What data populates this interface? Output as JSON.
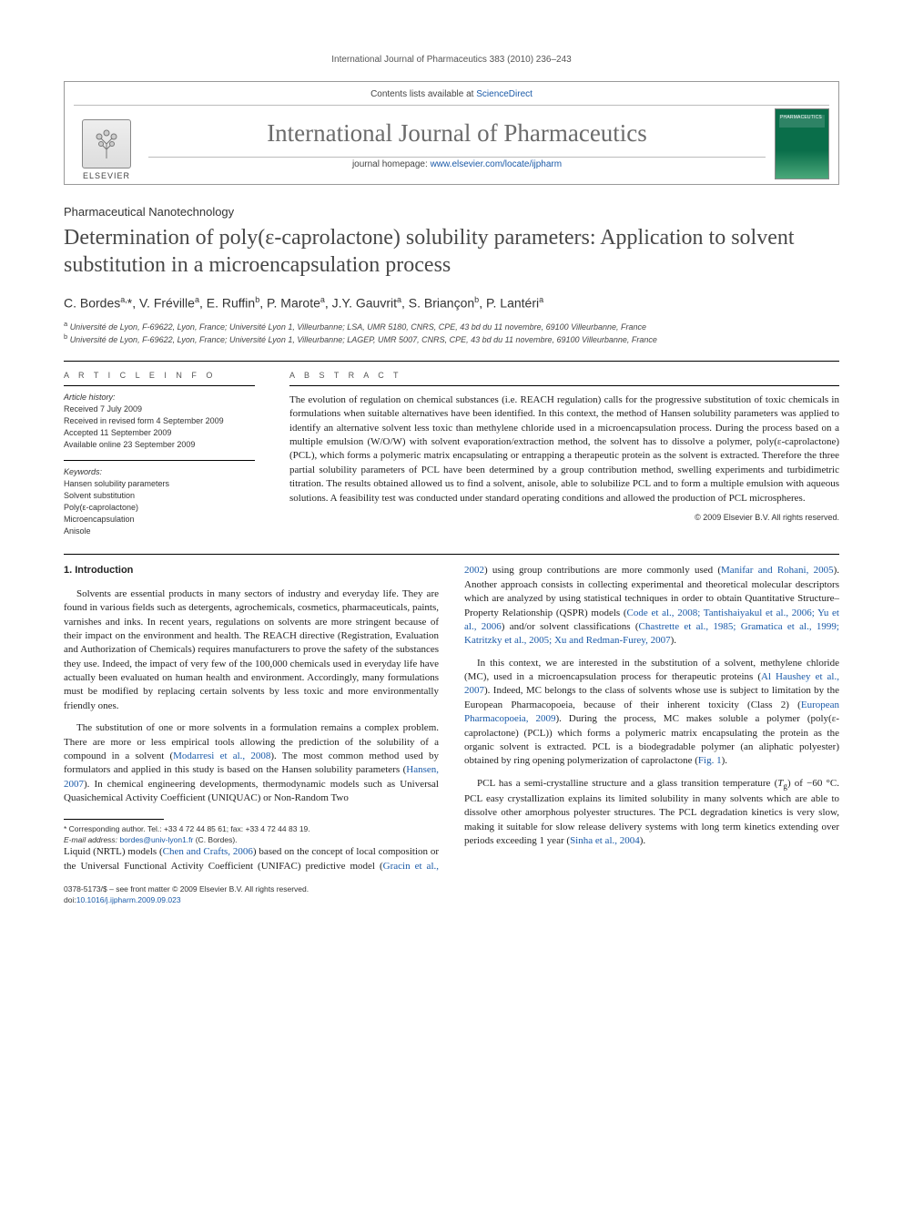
{
  "running_header": "International Journal of Pharmaceutics 383 (2010) 236–243",
  "masthead": {
    "contents_line_pre": "Contents lists available at ",
    "contents_link": "ScienceDirect",
    "journal_title": "International Journal of Pharmaceutics",
    "homepage_pre": "journal homepage: ",
    "homepage_link": "www.elsevier.com/locate/ijpharm",
    "elsevier": "ELSEVIER",
    "cover_label": "PHARMACEUTICS"
  },
  "section_tag": "Pharmaceutical Nanotechnology",
  "title": "Determination of poly(ε-caprolactone) solubility parameters: Application to solvent substitution in a microencapsulation process",
  "authors_html": "C. Bordes<sup>a,</sup>*, V. Fréville<sup>a</sup>, E. Ruffin<sup>b</sup>, P. Marote<sup>a</sup>, J.Y. Gauvrit<sup>a</sup>, S. Briançon<sup>b</sup>, P. Lantéri<sup>a</sup>",
  "affiliations": {
    "a": "Université de Lyon, F-69622, Lyon, France; Université Lyon 1, Villeurbanne; LSA, UMR 5180, CNRS, CPE, 43 bd du 11 novembre, 69100 Villeurbanne, France",
    "b": "Université de Lyon, F-69622, Lyon, France; Université Lyon 1, Villeurbanne; LAGEP, UMR 5007, CNRS, CPE, 43 bd du 11 novembre, 69100 Villeurbanne, France"
  },
  "info": {
    "heading": "A R T I C L E   I N F O",
    "history_label": "Article history:",
    "received": "Received 7 July 2009",
    "revised": "Received in revised form 4 September 2009",
    "accepted": "Accepted 11 September 2009",
    "online": "Available online 23 September 2009",
    "keywords_label": "Keywords:",
    "keywords": [
      "Hansen solubility parameters",
      "Solvent substitution",
      "Poly(ε-caprolactone)",
      "Microencapsulation",
      "Anisole"
    ]
  },
  "abstract": {
    "heading": "A B S T R A C T",
    "text": "The evolution of regulation on chemical substances (i.e. REACH regulation) calls for the progressive substitution of toxic chemicals in formulations when suitable alternatives have been identified. In this context, the method of Hansen solubility parameters was applied to identify an alternative solvent less toxic than methylene chloride used in a microencapsulation process. During the process based on a multiple emulsion (W/O/W) with solvent evaporation/extraction method, the solvent has to dissolve a polymer, poly(ε-caprolactone) (PCL), which forms a polymeric matrix encapsulating or entrapping a therapeutic protein as the solvent is extracted. Therefore the three partial solubility parameters of PCL have been determined by a group contribution method, swelling experiments and turbidimetric titration. The results obtained allowed us to find a solvent, anisole, able to solubilize PCL and to form a multiple emulsion with aqueous solutions. A feasibility test was conducted under standard operating conditions and allowed the production of PCL microspheres.",
    "copyright": "© 2009 Elsevier B.V. All rights reserved."
  },
  "intro": {
    "heading": "1.  Introduction",
    "p1": "Solvents are essential products in many sectors of industry and everyday life. They are found in various fields such as detergents, agrochemicals, cosmetics, pharmaceuticals, paints, varnishes and inks. In recent years, regulations on solvents are more stringent because of their impact on the environment and health. The REACH directive (Registration, Evaluation and Authorization of Chemicals) requires manufacturers to prove the safety of the substances they use. Indeed, the impact of very few of the 100,000 chemicals used in everyday life have actually been evaluated on human health and environment. Accordingly, many formulations must be modified by replacing certain solvents by less toxic and more environmentally friendly ones.",
    "p2_pre": "The substitution of one or more solvents in a formulation remains a complex problem. There are more or less empirical tools allowing the prediction of the solubility of a compound in a solvent (",
    "p2_ref1": "Modarresi et al., 2008",
    "p2_mid1": "). The most common method used by formulators and applied in this study is based on the Hansen solubility parameters (",
    "p2_ref2": "Hansen, 2007",
    "p2_post": "). In chemical engineering developments, thermodynamic models such as Universal Quasichemical Activity Coefficient (UNIQUAC) or Non-Random Two",
    "p3_pre": "Liquid (NRTL) models (",
    "p3_ref1": "Chen and Crafts, 2006",
    "p3_mid1": ") based on the concept of local composition or the Universal Functional Activity Coefficient (UNIFAC) predictive model (",
    "p3_ref2": "Gracin et al., 2002",
    "p3_mid2": ") using group contributions are more commonly used (",
    "p3_ref3": "Manifar and Rohani, 2005",
    "p3_mid3": "). Another approach consists in collecting experimental and theoretical molecular descriptors which are analyzed by using statistical techniques in order to obtain Quantitative Structure–Property Relationship (QSPR) models (",
    "p3_ref4": "Code et al., 2008; Tantishaiyakul et al., 2006; Yu et al., 2006",
    "p3_mid4": ") and/or solvent classifications (",
    "p3_ref5": "Chastrette et al., 1985; Gramatica et al., 1999; Katritzky et al., 2005; Xu and Redman-Furey, 2007",
    "p3_post": ").",
    "p4_pre": "In this context, we are interested in the substitution of a solvent, methylene chloride (MC), used in a microencapsulation process for therapeutic proteins (",
    "p4_ref1": "Al Haushey et al., 2007",
    "p4_mid1": "). Indeed, MC belongs to the class of solvents whose use is subject to limitation by the European Pharmacopoeia, because of their inherent toxicity (Class 2) (",
    "p4_ref2": "European Pharmacopoeia, 2009",
    "p4_mid2": "). During the process, MC makes soluble a polymer (poly(ε-caprolactone) (PCL)) which forms a polymeric matrix encapsulating the protein as the organic solvent is extracted. PCL is a biodegradable polymer (an aliphatic polyester) obtained by ring opening polymerization of caprolactone (",
    "p4_ref3": "Fig. 1",
    "p4_post": ").",
    "p5_pre": "PCL has a semi-crystalline structure and a glass transition temperature (",
    "p5_tg": "T",
    "p5_gsub": "g",
    "p5_mid1": ") of −60 °C. PCL easy crystallization explains its limited solubility in many solvents which are able to dissolve other amorphous polyester structures. The PCL degradation kinetics is very slow, making it suitable for slow release delivery systems with long term kinetics extending over periods exceeding 1 year (",
    "p5_ref1": "Sinha et al., 2004",
    "p5_post": ")."
  },
  "footnotes": {
    "corr_label": "* Corresponding author. Tel.: +33 4 72 44 85 61; fax: +33 4 72 44 83 19.",
    "email_label": "E-mail address:",
    "email": "bordes@univ-lyon1.fr",
    "email_post": " (C. Bordes)."
  },
  "footer": {
    "issn_line": "0378-5173/$ – see front matter © 2009 Elsevier B.V. All rights reserved.",
    "doi_pre": "doi:",
    "doi": "10.1016/j.ijpharm.2009.09.023"
  },
  "colors": {
    "link": "#1a5aa8",
    "title_gray": "#484848",
    "journal_gray": "#6b6b6b",
    "cover_green": "#0a6e4a"
  }
}
